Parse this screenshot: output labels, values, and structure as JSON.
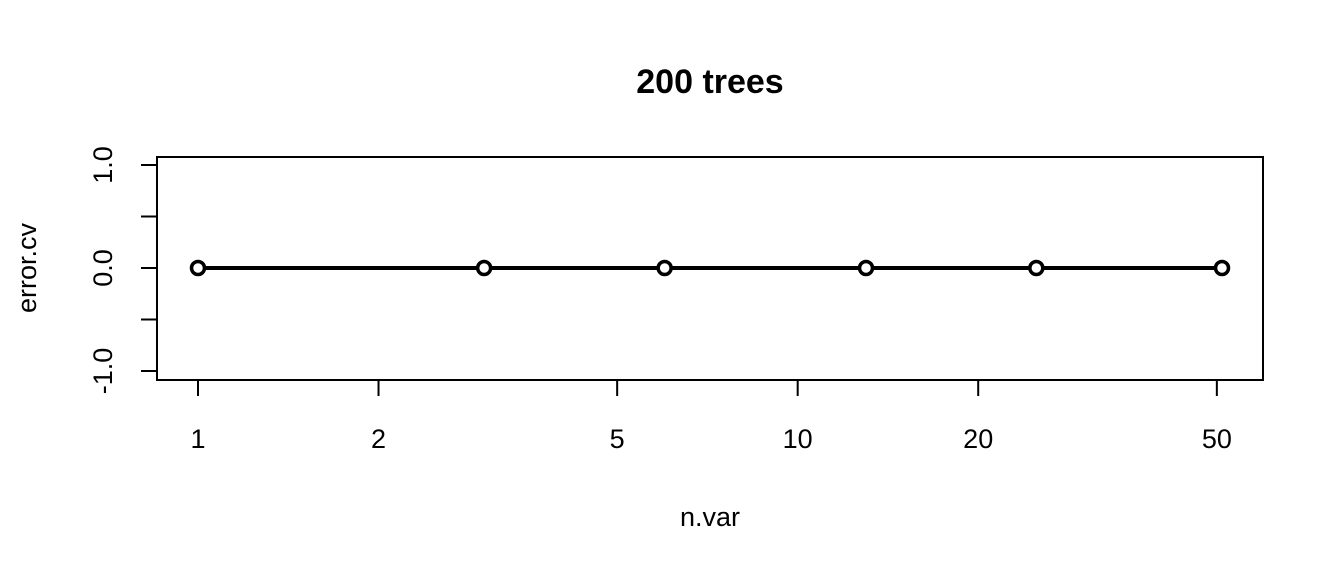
{
  "chart_data": {
    "type": "line",
    "title": "200 trees",
    "xlabel": "n.var",
    "ylabel": "error.cv",
    "x_scale": "log",
    "x_ticks": [
      1,
      2,
      5,
      10,
      20,
      50
    ],
    "x_tick_labels": [
      "1",
      "2",
      "5",
      "10",
      "20",
      "50"
    ],
    "y_ticks": [
      -1.0,
      -0.5,
      0.0,
      0.5,
      1.0
    ],
    "y_tick_labels": [
      "-1.0",
      "",
      "0.0",
      "",
      "1.0"
    ],
    "xlim": [
      1,
      51
    ],
    "ylim": [
      -1.0,
      1.0
    ],
    "grid": false,
    "series": [
      {
        "x": [
          1,
          3,
          6,
          13,
          25,
          51
        ],
        "y": [
          0,
          0,
          0,
          0,
          0,
          0
        ],
        "color": "#000000",
        "marker": "open-circle"
      }
    ]
  }
}
